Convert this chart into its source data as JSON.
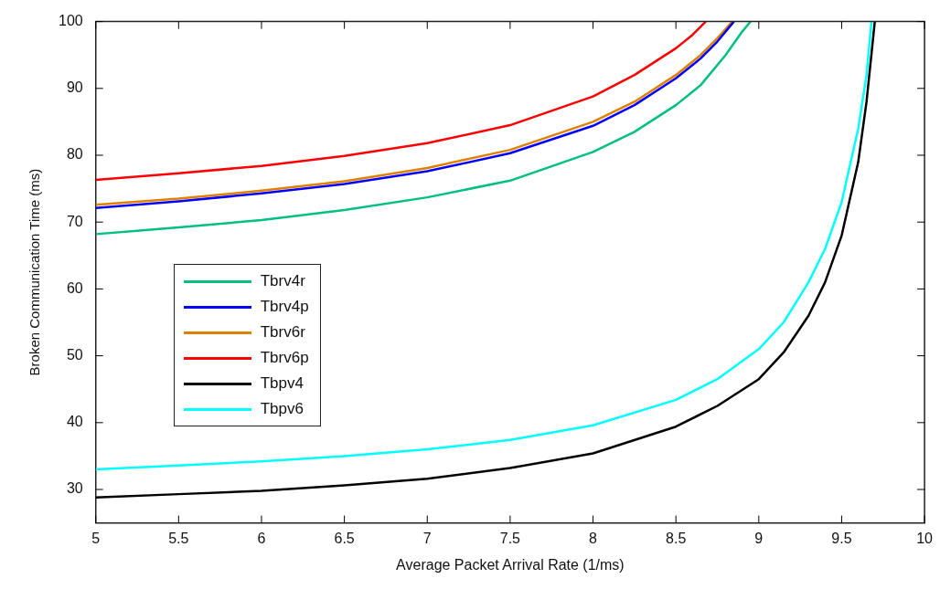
{
  "chart_data": {
    "type": "line",
    "xlabel": "Average Packet Arrival Rate (1/ms)",
    "ylabel": "Broken Communication Time (ms)",
    "xlim": [
      5,
      10
    ],
    "xticks": [
      5,
      5.5,
      6,
      6.5,
      7,
      7.5,
      8,
      8.5,
      9,
      9.5,
      10
    ],
    "ylim": [
      25,
      100
    ],
    "yticks": [
      30,
      40,
      50,
      60,
      70,
      80,
      90,
      100
    ],
    "grid": false,
    "legend": "left",
    "marker": "none",
    "line_style": "solid",
    "series": [
      {
        "name": "Tbrv4r",
        "color": "#00c080",
        "x": [
          5,
          5.5,
          6,
          6.5,
          7,
          7.5,
          8,
          8.25,
          8.5,
          8.65,
          8.8,
          8.9,
          8.95
        ],
        "values": [
          68.2,
          69.2,
          70.3,
          71.8,
          73.7,
          76.2,
          80.5,
          83.5,
          87.5,
          90.5,
          95,
          98.5,
          100
        ]
      },
      {
        "name": "Tbrv4p",
        "color": "#0000ff",
        "x": [
          5,
          5.5,
          6,
          6.5,
          7,
          7.5,
          8,
          8.25,
          8.5,
          8.65,
          8.75,
          8.85
        ],
        "values": [
          72.1,
          73.1,
          74.3,
          75.7,
          77.6,
          80.3,
          84.4,
          87.5,
          91.5,
          94.5,
          97,
          100
        ]
      },
      {
        "name": "Tbrv6r",
        "color": "#e08000",
        "x": [
          5,
          5.5,
          6,
          6.5,
          7,
          7.5,
          8,
          8.25,
          8.5,
          8.65,
          8.75,
          8.84
        ],
        "values": [
          72.6,
          73.5,
          74.7,
          76.1,
          78.1,
          80.8,
          85,
          88,
          92,
          95,
          97.5,
          100
        ]
      },
      {
        "name": "Tbrv6p",
        "color": "#ff0000",
        "x": [
          5,
          5.5,
          6,
          6.5,
          7,
          7.5,
          8,
          8.25,
          8.5,
          8.6,
          8.68
        ],
        "values": [
          76.3,
          77.3,
          78.4,
          79.9,
          81.8,
          84.5,
          88.8,
          92,
          96,
          98,
          100
        ]
      },
      {
        "name": "Tbpv4",
        "color": "#000000",
        "x": [
          5,
          5.5,
          6,
          6.5,
          7,
          7.5,
          8,
          8.5,
          8.75,
          9,
          9.15,
          9.3,
          9.4,
          9.5,
          9.6,
          9.65,
          9.7
        ],
        "values": [
          28.8,
          29.3,
          29.8,
          30.6,
          31.6,
          33.2,
          35.4,
          39.4,
          42.5,
          46.5,
          50.5,
          56,
          61,
          68,
          79,
          88,
          100
        ]
      },
      {
        "name": "Tbpv6",
        "color": "#00ffff",
        "x": [
          5,
          5.5,
          6,
          6.5,
          7,
          7.5,
          8,
          8.5,
          8.75,
          9,
          9.15,
          9.3,
          9.4,
          9.5,
          9.6,
          9.65,
          9.68
        ],
        "values": [
          33,
          33.6,
          34.2,
          35,
          36,
          37.4,
          39.6,
          43.4,
          46.5,
          51,
          55,
          61,
          66,
          73,
          84,
          92,
          100
        ]
      }
    ]
  }
}
